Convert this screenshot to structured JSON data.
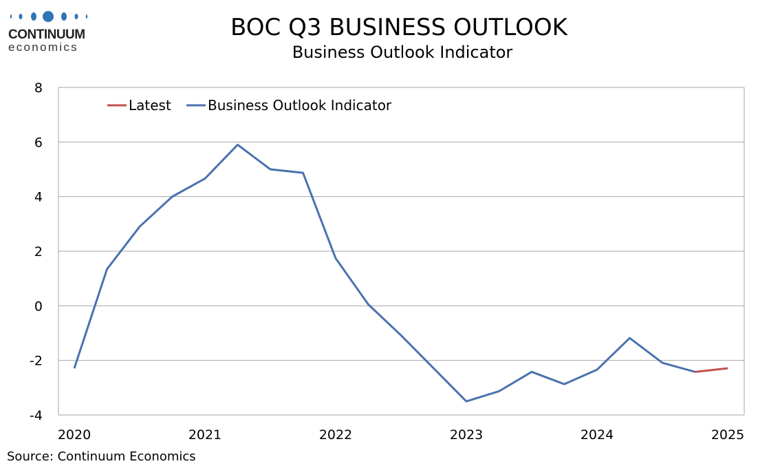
{
  "logo": {
    "name": "CONTINUUM",
    "sub": "economics"
  },
  "header": {
    "title": "BOC Q3  BUSINESS OUTLOOK",
    "subtitle": "Business Outlook Indicator"
  },
  "footer": {
    "source": "Source: Continuum Economics"
  },
  "colors": {
    "main": "#4a72ad",
    "latest": "#c0504d",
    "grid": "#a6a6a6"
  },
  "chart_data": {
    "type": "line",
    "title": "BOC Q3  BUSINESS OUTLOOK",
    "subtitle": "Business Outlook Indicator",
    "xlabel": "",
    "ylabel": "",
    "ylim": [
      -4,
      8
    ],
    "yticks": [
      "8",
      "6",
      "4",
      "2",
      "0",
      "-2",
      "-4"
    ],
    "ytick_values": [
      8,
      6,
      4,
      2,
      0,
      -2,
      -4
    ],
    "xticks": [
      "2020",
      "2021",
      "2022",
      "2023",
      "2024",
      "2025"
    ],
    "xtick_values": [
      2020,
      2021,
      2022,
      2023,
      2024,
      2025
    ],
    "grid": true,
    "legend_position": "top-left",
    "x": [
      2020.0,
      2020.25,
      2020.5,
      2020.75,
      2021.0,
      2021.25,
      2021.5,
      2021.75,
      2022.0,
      2022.25,
      2022.5,
      2022.75,
      2023.0,
      2023.25,
      2023.5,
      2023.75,
      2024.0,
      2024.25,
      2024.5,
      2024.75,
      2025.0
    ],
    "series": [
      {
        "name": "Latest",
        "x": [
          2024.75,
          2025.0
        ],
        "values": [
          -2.42,
          -2.29
        ]
      },
      {
        "name": "Business Outlook Indicator",
        "x": [
          2020.0,
          2020.25,
          2020.5,
          2020.75,
          2021.0,
          2021.25,
          2021.5,
          2021.75,
          2022.0,
          2022.25,
          2022.5,
          2022.75,
          2023.0,
          2023.25,
          2023.5,
          2023.75,
          2024.0,
          2024.25,
          2024.5,
          2024.75
        ],
        "values": [
          -2.29,
          1.34,
          2.9,
          4.0,
          4.66,
          5.9,
          5.0,
          4.87,
          1.74,
          0.05,
          -1.08,
          -2.29,
          -3.5,
          -3.13,
          -2.42,
          -2.87,
          -2.34,
          -1.18,
          -2.09,
          -2.42
        ]
      }
    ]
  }
}
